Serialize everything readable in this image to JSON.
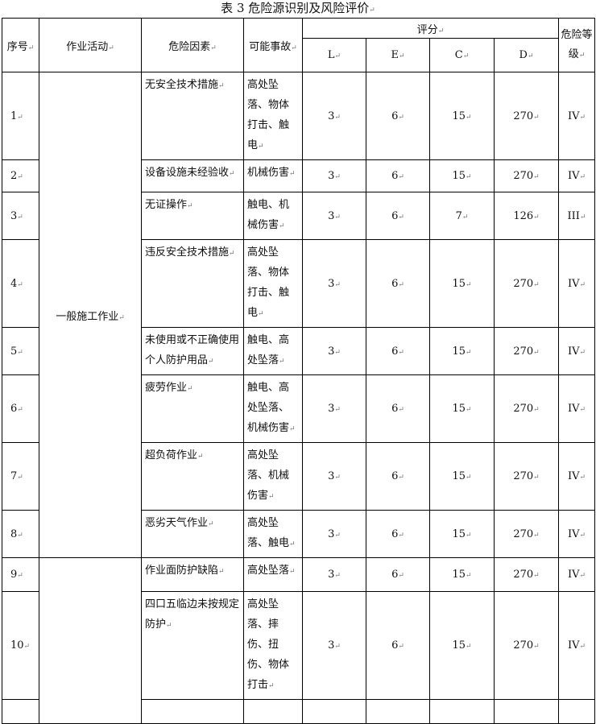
{
  "title": "表 3  危险源识别及风险评价",
  "headers": {
    "no": "序号",
    "activity": "作业活动",
    "factor": "危险因素",
    "accident": "可能事故",
    "score": "评分",
    "L": "L",
    "E": "E",
    "C": "C",
    "D": "D",
    "level": "危险等级"
  },
  "groups": [
    {
      "activity": "一般施工作业"
    },
    {
      "activity": ""
    }
  ],
  "rows": [
    {
      "no": "1",
      "factor": "无安全技术措施",
      "accident": "高处坠落、物体打击、触电",
      "L": "3",
      "E": "6",
      "C": "15",
      "D": "270",
      "level": "IV"
    },
    {
      "no": "2",
      "factor": "设备设施未经验收",
      "accident": "机械伤害",
      "L": "3",
      "E": "6",
      "C": "15",
      "D": "270",
      "level": "IV"
    },
    {
      "no": "3",
      "factor": "无证操作",
      "accident": "触电、机械伤害",
      "L": "3",
      "E": "6",
      "C": "7",
      "D": "126",
      "level": "III"
    },
    {
      "no": "4",
      "factor": "违反安全技术措施",
      "accident": "高处坠落、物体打击、触电",
      "L": "3",
      "E": "6",
      "C": "15",
      "D": "270",
      "level": "IV"
    },
    {
      "no": "5",
      "factor": "未使用或不正确使用个人防护用品",
      "accident": "触电、高处坠落",
      "L": "3",
      "E": "6",
      "C": "15",
      "D": "270",
      "level": "IV"
    },
    {
      "no": "6",
      "factor": "疲劳作业",
      "accident": "触电、高处坠落、机械伤害",
      "L": "3",
      "E": "6",
      "C": "15",
      "D": "270",
      "level": "IV"
    },
    {
      "no": "7",
      "factor": "超负荷作业",
      "accident": "高处坠落、机械伤害",
      "L": "3",
      "E": "6",
      "C": "15",
      "D": "270",
      "level": "IV"
    },
    {
      "no": "8",
      "factor": "恶劣天气作业",
      "accident": "高处坠落、触电",
      "L": "3",
      "E": "6",
      "C": "15",
      "D": "270",
      "level": "IV"
    },
    {
      "no": "9",
      "factor": "作业面防护缺陷",
      "accident": "高处坠落",
      "L": "3",
      "E": "6",
      "C": "15",
      "D": "270",
      "level": "IV"
    },
    {
      "no": "10",
      "factor": "四口五临边未按规定防护",
      "accident": "高处坠落、摔伤、扭伤、物体打击",
      "L": "3",
      "E": "6",
      "C": "15",
      "D": "270",
      "level": "IV"
    }
  ]
}
